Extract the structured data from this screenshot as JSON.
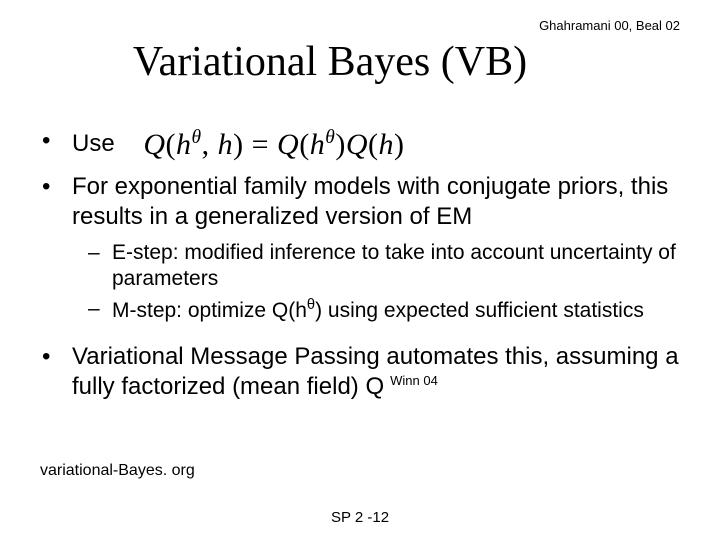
{
  "topCitation": "Ghahramani 00, Beal 02",
  "title": "Variational Bayes (VB)",
  "bullets": {
    "b1_prefix": "Use",
    "b2": "For exponential family models with conjugate priors, this results in a generalized version of EM",
    "b2a": "E-step: modified inference to take into account uncertainty of parameters",
    "b2b_pre": "M-step: optimize Q(h",
    "b2b_post": ") using expected sufficient statistics",
    "b3": "Variational Message Passing automates this, assuming a fully factorized (mean field) Q"
  },
  "inlineCitation": "Winn 04",
  "formula": {
    "Q": "Q",
    "h": "h",
    "theta": "θ",
    "eq": " = "
  },
  "bottomLink": "variational-Bayes. org",
  "footer": "SP 2 -12",
  "markers": {
    "dot": "•",
    "dash": "–"
  }
}
